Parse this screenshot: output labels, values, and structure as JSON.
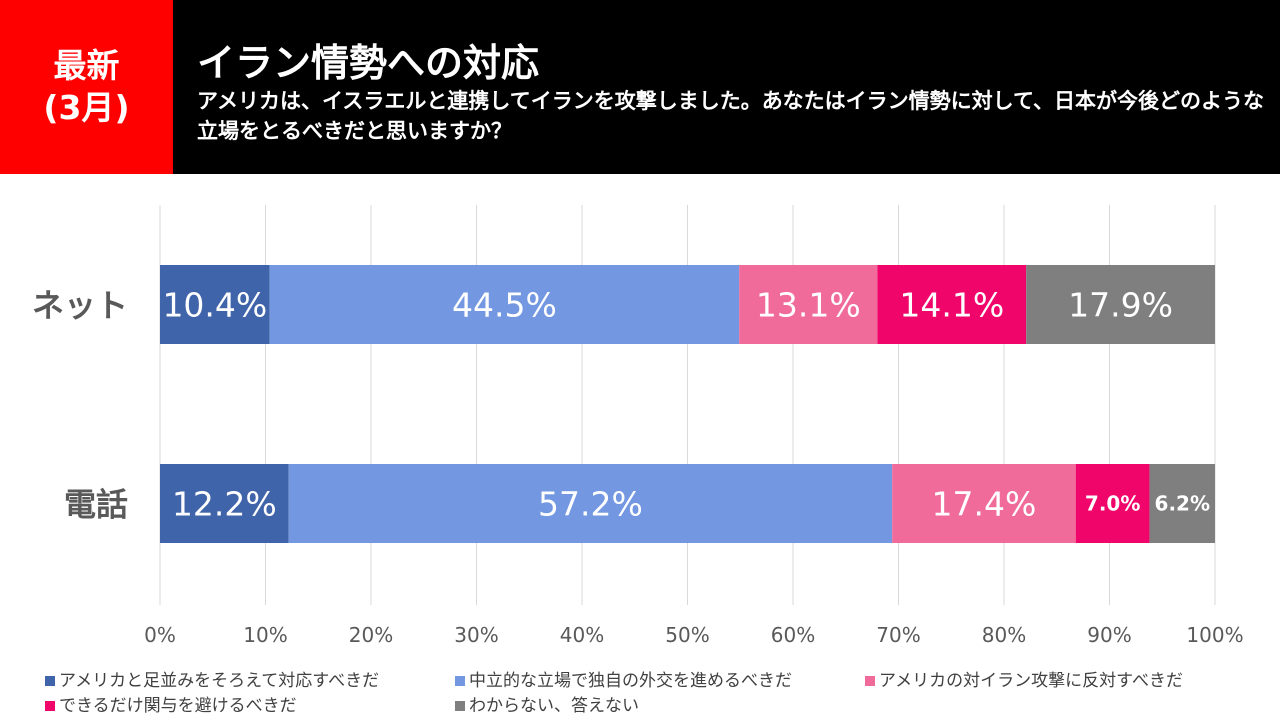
{
  "header": {
    "badge_line1": "最新",
    "badge_line2": "(3月)",
    "title": "イラン情勢への対応",
    "question": "アメリカは、イスラエルと連携してイランを攻撃しました。あなたはイラン情勢に対して、日本が今後どのような立場をとるべきだと思いますか？"
  },
  "chart_data": {
    "type": "bar",
    "orientation": "horizontal",
    "stacked": true,
    "categories": [
      "ネット",
      "電話"
    ],
    "series": [
      {
        "name": "アメリカと足並みをそろえて対応すべきだ",
        "color": "#4064aa",
        "values": [
          10.4,
          12.2
        ],
        "labels": [
          "10.4%",
          "12.2%"
        ]
      },
      {
        "name": "中立的な立場で独自の外交を進めるべきだ",
        "color": "#7398e1",
        "values": [
          44.5,
          57.2
        ],
        "labels": [
          "44.5%",
          "57.2%"
        ]
      },
      {
        "name": "アメリカの対イラン攻撃に反対すべきだ",
        "color": "#f06b99",
        "values": [
          13.1,
          17.4
        ],
        "labels": [
          "13.1%",
          "17.4%"
        ]
      },
      {
        "name": "できるだけ関与を避けるべきだ",
        "color": "#f0066b",
        "values": [
          14.1,
          7.0
        ],
        "labels": [
          "14.1%",
          "7.0%"
        ]
      },
      {
        "name": "わからない、答えない",
        "color": "#7f7f7f",
        "values": [
          17.9,
          6.2
        ],
        "labels": [
          "17.9%",
          "6.2%"
        ]
      }
    ],
    "xlim": [
      0,
      100
    ],
    "xticks": [
      "0%",
      "10%",
      "20%",
      "30%",
      "40%",
      "50%",
      "60%",
      "70%",
      "80%",
      "90%",
      "100%"
    ],
    "grid": true,
    "legend_position": "bottom"
  }
}
